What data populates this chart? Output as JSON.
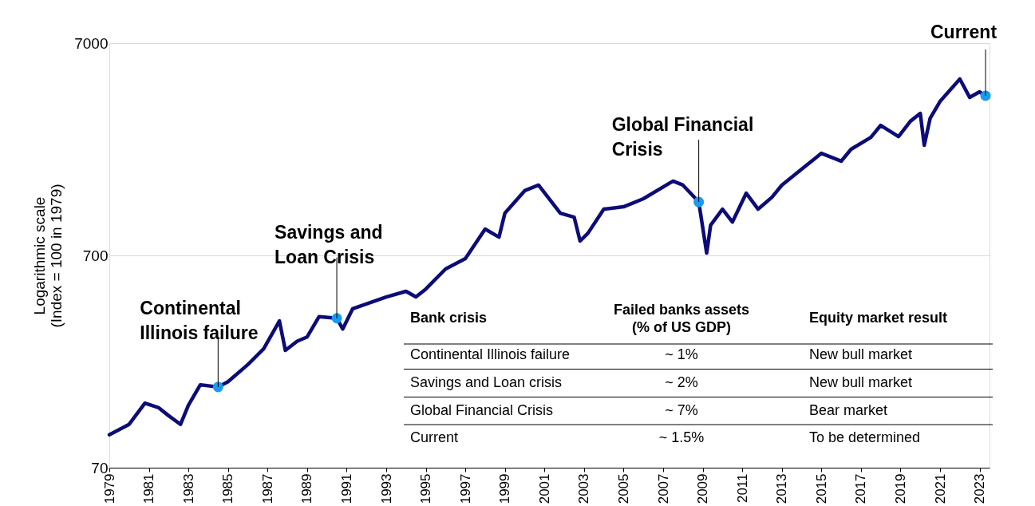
{
  "chart_data": {
    "type": "line",
    "ylabel": "Logarithmic scale\n(Index = 100 in 1979)",
    "log": true,
    "grid": "y",
    "line_style": "solid",
    "marker": "none",
    "xlim": [
      1979,
      2023.5
    ],
    "xticks": [
      1979,
      1981,
      1983,
      1985,
      1987,
      1989,
      1991,
      1993,
      1995,
      1997,
      1999,
      2001,
      2003,
      2005,
      2007,
      2009,
      2011,
      2013,
      2015,
      2017,
      2019,
      2021,
      2023
    ],
    "ylim": [
      70,
      7000
    ],
    "yticks": [
      70,
      700,
      7000
    ],
    "series": [
      {
        "color": "#0c0c78",
        "x": [
          1979.0,
          1980.0,
          1980.8,
          1981.5,
          1982.0,
          1982.6,
          1983.0,
          1983.6,
          1984.5,
          1985.0,
          1986.0,
          1986.8,
          1987.6,
          1987.9,
          1988.5,
          1989.0,
          1989.6,
          1990.5,
          1990.8,
          1991.3,
          1993.0,
          1994.0,
          1994.5,
          1995.0,
          1996.0,
          1997.0,
          1998.0,
          1998.7,
          1999.0,
          2000.0,
          2000.7,
          2001.8,
          2002.5,
          2002.8,
          2003.2,
          2004.0,
          2005.0,
          2006.0,
          2007.5,
          2008.0,
          2008.8,
          2009.2,
          2009.4,
          2010.0,
          2010.5,
          2011.2,
          2011.8,
          2012.5,
          2013.0,
          2014.0,
          2015.0,
          2016.0,
          2016.5,
          2017.5,
          2018.0,
          2018.9,
          2019.5,
          2020.0,
          2020.2,
          2020.5,
          2021.0,
          2022.0,
          2022.5,
          2023.0,
          2023.3
        ],
        "values": [
          100,
          112,
          141,
          134,
          123,
          112,
          138,
          172,
          168,
          178,
          214,
          254,
          344,
          250,
          276,
          289,
          360,
          354,
          315,
          392,
          446,
          474,
          446,
          486,
          604,
          676,
          931,
          853,
          1107,
          1412,
          1500,
          1107,
          1060,
          818,
          891,
          1156,
          1186,
          1294,
          1567,
          1500,
          1250,
          718,
          972,
          1156,
          1005,
          1374,
          1156,
          1315,
          1500,
          1782,
          2118,
          1945,
          2213,
          2518,
          2869,
          2541,
          3000,
          3266,
          2312,
          3100,
          3720,
          4742,
          3883,
          4128,
          3953
        ]
      },
      {
        "type": "scatter",
        "marker": "circle",
        "color": "#1a9bef",
        "x": [
          1984.5,
          1990.5,
          2008.8,
          2023.3
        ],
        "values": [
          168,
          354,
          1250,
          3953
        ]
      }
    ],
    "annotations": [
      {
        "text": "Continental\nIllinois failure",
        "x": 1984.5,
        "y": 168
      },
      {
        "text": "Savings and\nLoan Crisis",
        "x": 1990.5,
        "y": 354
      },
      {
        "text": "Global Financial\nCrisis",
        "x": 2008.8,
        "y": 1250
      },
      {
        "text": "Current",
        "x": 2023.3,
        "y": 3953
      },
      "Bank crisis",
      "Failed banks assets\n(% of US GDP)",
      "Equity market result",
      "Continental Illinois failure",
      "~ 1%",
      "New bull market",
      "Savings and Loan crisis",
      "~ 2%",
      "New bull market",
      "Global Financial Crisis",
      "~ 7%",
      "Bear market",
      "Current",
      "~ 1.5%",
      "To be determined"
    ]
  }
}
